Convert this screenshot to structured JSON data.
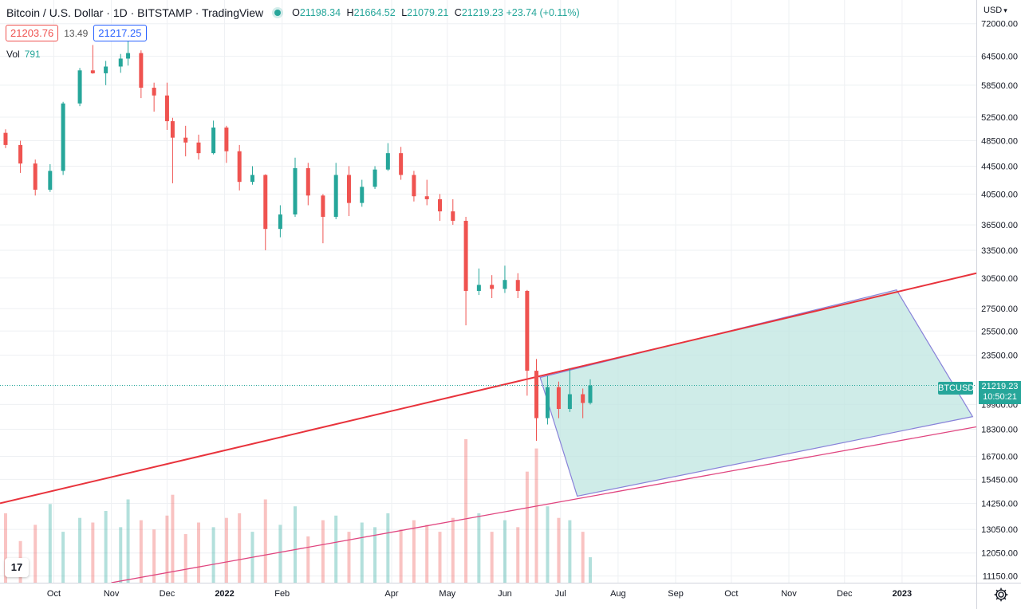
{
  "header": {
    "title": "Bitcoin / U.S. Dollar · 1D · BITSTAMP · TradingView",
    "ohlc": {
      "o_label": "O",
      "o": "21198.34",
      "h_label": "H",
      "h": "21664.52",
      "l_label": "L",
      "l": "21079.21",
      "c_label": "C",
      "c": "21219.23",
      "change": "+23.74 (+0.11%)"
    }
  },
  "quotes": {
    "sell": "21203.76",
    "spread": "13.49",
    "buy": "21217.25"
  },
  "volume": {
    "label": "Vol",
    "value": "791"
  },
  "axis": {
    "currency": "USD",
    "symbol_tag": "BTCUSD",
    "last_price": "21219.23",
    "countdown": "10:50:21",
    "price_labels": [
      "72000.00",
      "64500.00",
      "58500.00",
      "52500.00",
      "48500.00",
      "44500.00",
      "40500.00",
      "36500.00",
      "33500.00",
      "30500.00",
      "27500.00",
      "25500.00",
      "23500.00",
      "19900.00",
      "18300.00",
      "16700.00",
      "15450.00",
      "14250.00",
      "13050.00",
      "12050.00",
      "11150.00"
    ],
    "time_labels": [
      "Oct",
      "Nov",
      "Dec",
      "2022",
      "Feb",
      "Apr",
      "May",
      "Jun",
      "Jul",
      "Aug",
      "Sep",
      "Oct",
      "Nov",
      "Dec",
      "2023"
    ]
  },
  "colors": {
    "up": "#26a69a",
    "down": "#ef5350",
    "channel": "#e8333c",
    "lower_line": "#e0457f",
    "rect_fill": "#bfe5e0",
    "rect_border": "#8882d9",
    "grid": "#eef0f3"
  },
  "icons": {
    "logo": "tradingview-logo-icon",
    "settings": "gear-icon",
    "status": "status-dot-icon"
  },
  "logo_text": "17",
  "chart_data": {
    "type": "candlestick",
    "title": "Bitcoin / U.S. Dollar · 1D · BITSTAMP",
    "y_scale": "log",
    "ylim": [
      10900,
      78000
    ],
    "xlim": [
      "2021-09-02",
      "2023-02-10"
    ],
    "last_price": 21219.23,
    "candles": [
      [
        "2021-09-05",
        49800,
        50400,
        47300,
        47800
      ],
      [
        "2021-09-13",
        47800,
        48500,
        43500,
        44900
      ],
      [
        "2021-09-21",
        44900,
        45500,
        40300,
        41100
      ],
      [
        "2021-09-29",
        41100,
        44800,
        40800,
        43800
      ],
      [
        "2021-10-06",
        43800,
        55300,
        43200,
        55000
      ],
      [
        "2021-10-15",
        55000,
        62000,
        54500,
        61500
      ],
      [
        "2021-10-22",
        61500,
        67000,
        60800,
        60900
      ],
      [
        "2021-10-29",
        60900,
        63500,
        58500,
        62300
      ],
      [
        "2021-11-06",
        62300,
        65000,
        61000,
        64000
      ],
      [
        "2021-11-10",
        64000,
        69000,
        62500,
        65200
      ],
      [
        "2021-11-17",
        65200,
        65800,
        56000,
        58000
      ],
      [
        "2021-11-24",
        58000,
        59000,
        53500,
        56500
      ],
      [
        "2021-12-01",
        56500,
        59000,
        50300,
        51800
      ],
      [
        "2021-12-04",
        51800,
        52400,
        42000,
        49000
      ],
      [
        "2021-12-11",
        49000,
        51000,
        46000,
        48200
      ],
      [
        "2021-12-18",
        48200,
        49500,
        45500,
        46500
      ],
      [
        "2021-12-26",
        46500,
        51900,
        46300,
        50700
      ],
      [
        "2022-01-02",
        50700,
        51000,
        45000,
        46800
      ],
      [
        "2022-01-09",
        46800,
        47800,
        41000,
        42200
      ],
      [
        "2022-01-16",
        42200,
        44500,
        41800,
        43200
      ],
      [
        "2022-01-23",
        43200,
        43300,
        33500,
        36000
      ],
      [
        "2022-01-31",
        36000,
        39000,
        35000,
        37800
      ],
      [
        "2022-02-08",
        37800,
        45800,
        37500,
        44200
      ],
      [
        "2022-02-15",
        44200,
        45000,
        39000,
        40300
      ],
      [
        "2022-02-23",
        40300,
        40500,
        34300,
        37500
      ],
      [
        "2022-03-02",
        37500,
        45000,
        37200,
        43200
      ],
      [
        "2022-03-09",
        43200,
        44500,
        37600,
        39300
      ],
      [
        "2022-03-16",
        39300,
        42500,
        38800,
        41500
      ],
      [
        "2022-03-23",
        41500,
        44500,
        41200,
        44000
      ],
      [
        "2022-03-30",
        44000,
        48100,
        43800,
        46500
      ],
      [
        "2022-04-06",
        46500,
        47500,
        42500,
        43200
      ],
      [
        "2022-04-13",
        43200,
        43800,
        39500,
        40200
      ],
      [
        "2022-04-20",
        40200,
        42500,
        39000,
        39800
      ],
      [
        "2022-04-27",
        39800,
        40500,
        37000,
        38200
      ],
      [
        "2022-05-04",
        38200,
        39800,
        36500,
        37000
      ],
      [
        "2022-05-11",
        37000,
        37500,
        26000,
        29200
      ],
      [
        "2022-05-18",
        29200,
        31500,
        28800,
        29800
      ],
      [
        "2022-05-25",
        29800,
        30800,
        28500,
        29400
      ],
      [
        "2022-06-01",
        29400,
        31800,
        29000,
        30300
      ],
      [
        "2022-06-08",
        30300,
        31000,
        28500,
        29200
      ],
      [
        "2022-06-13",
        29200,
        29300,
        20500,
        22300
      ],
      [
        "2022-06-18",
        22300,
        23200,
        17600,
        19000
      ],
      [
        "2022-06-24",
        19000,
        21900,
        18600,
        21100
      ],
      [
        "2022-06-30",
        21100,
        21500,
        19000,
        19600
      ],
      [
        "2022-07-06",
        19600,
        22500,
        19400,
        20600
      ],
      [
        "2022-07-13",
        20600,
        21000,
        19000,
        20000
      ],
      [
        "2022-07-17",
        20000,
        21664,
        19900,
        21219
      ]
    ],
    "volume": [
      30,
      18,
      25,
      34,
      22,
      28,
      26,
      31,
      24,
      36,
      27,
      23,
      29,
      38,
      21,
      26,
      24,
      28,
      30,
      22,
      36,
      25,
      33,
      20,
      27,
      29,
      22,
      26,
      24,
      30,
      23,
      27,
      25,
      22,
      28,
      62,
      30,
      22,
      27,
      24,
      48,
      58,
      33,
      28,
      27,
      22,
      11
    ],
    "annotations": [
      {
        "type": "trend_line",
        "points": [
          [
            "2021-09-02",
            14250
          ],
          [
            "2023-02-10",
            31000
          ]
        ]
      },
      {
        "type": "trend_line",
        "points": [
          [
            "2021-11-01",
            10900
          ],
          [
            "2023-02-10",
            18450
          ]
        ]
      },
      {
        "type": "parallelogram",
        "points": [
          [
            "2022-06-20",
            21800
          ],
          [
            "2022-12-29",
            29300
          ],
          [
            "2023-02-08",
            19100
          ],
          [
            "2022-07-10",
            14600
          ]
        ]
      }
    ]
  }
}
